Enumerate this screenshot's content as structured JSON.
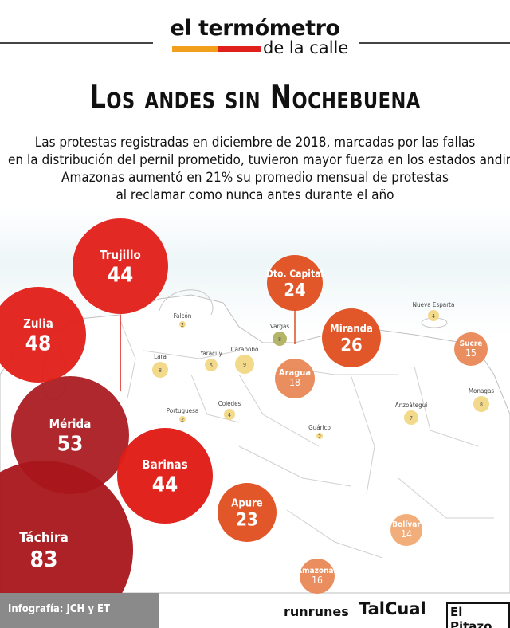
{
  "header": {
    "logo_line1": "el termómetro",
    "logo_line2": "de la calle",
    "title": "Los andes sin Nochebuena",
    "subtitle_lines": [
      "Las protestas registradas en diciembre de 2018, marcadas por las fallas",
      "en la distribución del pernil prometido, tuvieron mayor fuerza en los estados andinos.",
      "Amazonas aumentó en 21% su promedio mensual de protestas",
      "al reclamar como nunca antes durante el año"
    ]
  },
  "colors": {
    "dark_red": "#a8161b",
    "red": "#e01e17",
    "orange_red": "#df4e1f",
    "orange": "#e8824e",
    "light_orange": "#f0a46c",
    "yellow": "#f3d98a",
    "olive": "#b5b56a",
    "logo_orange": "#f2a01b",
    "logo_red": "#e0201c"
  },
  "chart_data": {
    "type": "bubble-map",
    "states": [
      {
        "name": "Táchira",
        "value": 83
      },
      {
        "name": "Mérida",
        "value": 53
      },
      {
        "name": "Zulia",
        "value": 48
      },
      {
        "name": "Trujillo",
        "value": 44
      },
      {
        "name": "Barinas",
        "value": 44
      },
      {
        "name": "Miranda",
        "value": 26
      },
      {
        "name": "Dto. Capital",
        "value": 24
      },
      {
        "name": "Apure",
        "value": 23
      },
      {
        "name": "Aragua",
        "value": 18
      },
      {
        "name": "Amazonas",
        "value": 16
      },
      {
        "name": "Sucre",
        "value": 15
      },
      {
        "name": "Bolívar",
        "value": 14
      },
      {
        "name": "Carabobo",
        "value": 9
      },
      {
        "name": "Lara",
        "value": 8
      },
      {
        "name": "Vargas",
        "value": 8
      },
      {
        "name": "Monagas",
        "value": 8
      },
      {
        "name": "Anzoátegui",
        "value": 7
      },
      {
        "name": "Yaracuy",
        "value": 5
      },
      {
        "name": "Nueva Esparta",
        "value": 4
      },
      {
        "name": "Cojedes",
        "value": 4
      },
      {
        "name": "Falcón",
        "value": 2
      },
      {
        "name": "Portuguesa",
        "value": 2
      },
      {
        "name": "Guárico",
        "value": 2
      }
    ]
  },
  "footer": {
    "credit": "Infografía: JCH y ET",
    "brand1": "runrunes",
    "brand2": "TalCual",
    "brand3": "El Pitazo"
  }
}
